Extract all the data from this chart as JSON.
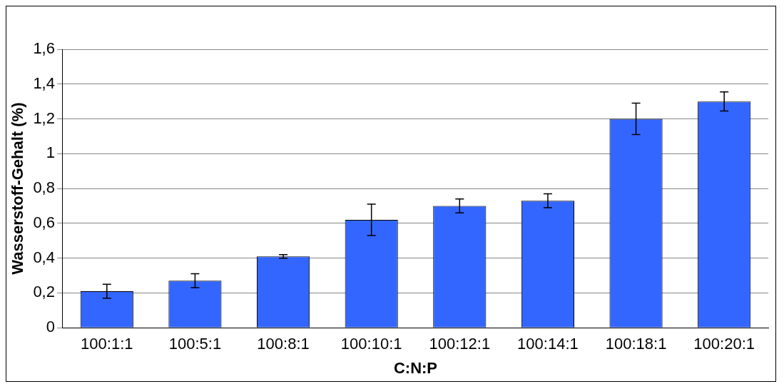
{
  "chart_data": {
    "type": "bar",
    "xlabel": "C:N:P",
    "ylabel": "Wasserstoff-Gehalt (%)",
    "categories": [
      "100:1:1",
      "100:5:1",
      "100:8:1",
      "100:10:1",
      "100:12:1",
      "100:14:1",
      "100:18:1",
      "100:20:1"
    ],
    "values": [
      0.21,
      0.27,
      0.41,
      0.62,
      0.7,
      0.73,
      1.2,
      1.3
    ],
    "errors": [
      0.04,
      0.04,
      0.01,
      0.09,
      0.04,
      0.04,
      0.09,
      0.055
    ],
    "color": "#3366ff",
    "ylim": [
      0,
      1.6
    ],
    "yticks": [
      0,
      {
        "value": 0.2,
        "label": "0,2"
      },
      {
        "value": 0.4,
        "label": "0,4"
      },
      {
        "value": 0.6,
        "label": "0,6"
      },
      {
        "value": 0.8,
        "label": "0,8"
      },
      1,
      {
        "value": 1.2,
        "label": "1,2"
      },
      {
        "value": 1.4,
        "label": "1,4"
      },
      {
        "value": 1.6,
        "label": "1,6"
      }
    ],
    "grid": "y",
    "legend": false
  }
}
